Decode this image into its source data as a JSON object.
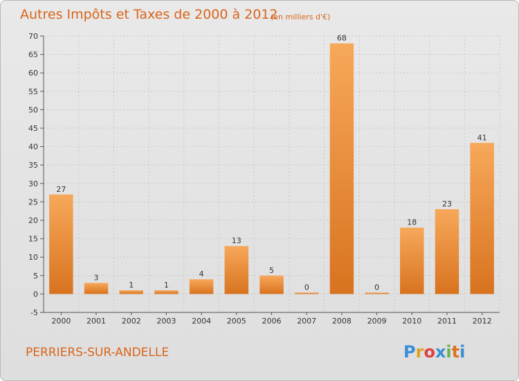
{
  "chart_data": {
    "type": "bar",
    "title": "Autres Impôts et Taxes de 2000 à 2012",
    "subtitle": "(en milliers d'€)",
    "categories": [
      "2000",
      "2001",
      "2002",
      "2003",
      "2004",
      "2005",
      "2006",
      "2007",
      "2008",
      "2009",
      "2010",
      "2011",
      "2012"
    ],
    "values": [
      27,
      3,
      1,
      1,
      4,
      13,
      5,
      0,
      68,
      0,
      18,
      23,
      41
    ],
    "ylim": [
      -5,
      70
    ],
    "yticks": [
      "-5",
      "0",
      "5",
      "10",
      "15",
      "20",
      "25",
      "30",
      "35",
      "40",
      "45",
      "50",
      "55",
      "60",
      "65",
      "70"
    ],
    "grid": true,
    "bar_color_top": "#f7a85a",
    "bar_color_bottom": "#d8731f"
  },
  "footer": {
    "commune": "PERRIERS-SUR-ANDELLE",
    "brand": "Proxiti",
    "brand_colors": [
      "#3a8fd6",
      "#e0a020",
      "#e04040",
      "#3a8fd6",
      "#6ab04c",
      "#e07020",
      "#3a8fd6"
    ]
  },
  "colors": {
    "title": "#d9641a",
    "grid": "#c8c8c8",
    "axis": "#555555"
  }
}
